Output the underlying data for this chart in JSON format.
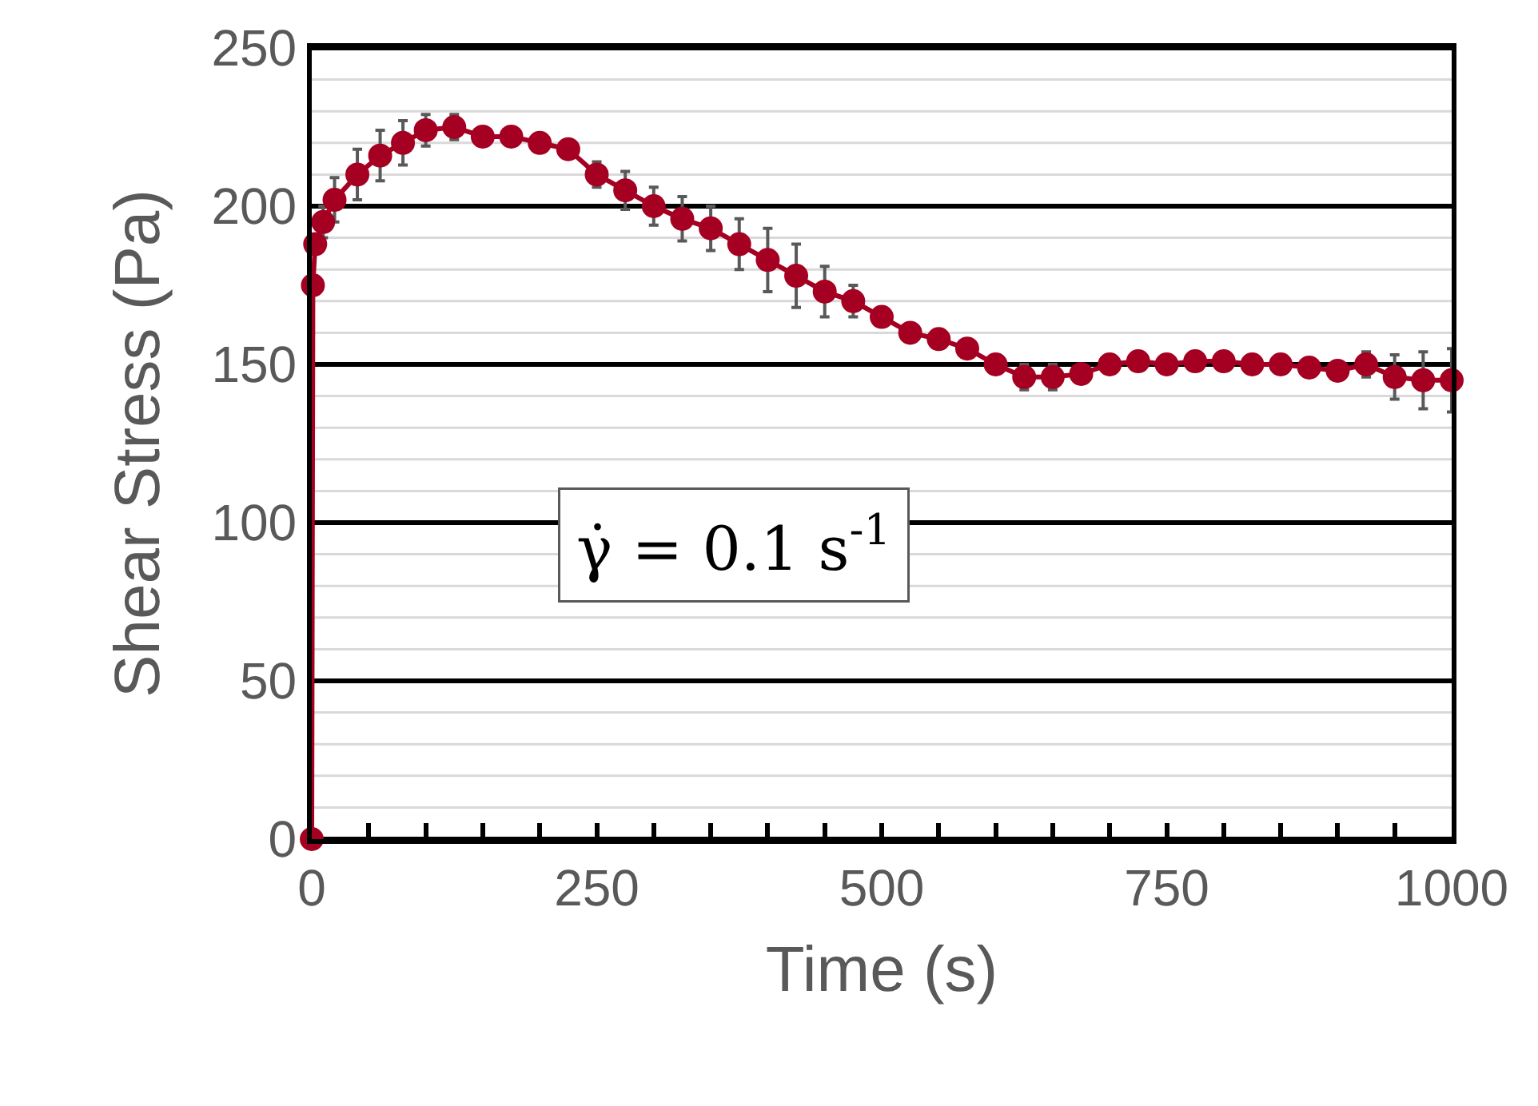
{
  "chart_data": {
    "type": "line",
    "xlabel": "Time (s)",
    "ylabel": "Shear Stress (Pa)",
    "x": [
      0,
      1,
      3,
      10,
      20,
      40,
      60,
      80,
      100,
      125,
      150,
      175,
      200,
      225,
      250,
      275,
      300,
      325,
      350,
      375,
      400,
      425,
      450,
      475,
      500,
      525,
      550,
      575,
      600,
      625,
      650,
      675,
      700,
      725,
      750,
      775,
      800,
      825,
      850,
      875,
      900,
      925,
      950,
      975,
      1000
    ],
    "series": [
      {
        "color": "#a50021",
        "values": [
          0,
          175,
          188,
          195,
          202,
          210,
          216,
          220,
          224,
          225,
          222,
          222,
          220,
          218,
          210,
          205,
          200,
          196,
          193,
          188,
          183,
          178,
          173,
          170,
          165,
          160,
          158,
          155,
          150,
          146,
          146,
          147,
          150,
          151,
          150,
          151,
          151,
          150,
          150,
          149,
          148,
          150,
          146,
          145,
          145
        ],
        "errors": [
          null,
          null,
          null,
          5,
          7,
          8,
          8,
          7,
          5,
          4,
          null,
          null,
          null,
          null,
          4,
          6,
          6,
          7,
          7,
          8,
          10,
          10,
          8,
          5,
          null,
          null,
          null,
          null,
          null,
          4,
          4,
          null,
          null,
          null,
          null,
          null,
          null,
          null,
          null,
          null,
          null,
          4,
          7,
          9,
          10
        ]
      }
    ],
    "marker": "circle",
    "line_style": "solid",
    "grid": "y",
    "xlim": [
      0,
      1000
    ],
    "ylim": [
      0,
      250
    ],
    "xticks": [
      0,
      {
        "value": 50,
        "label": null
      },
      {
        "value": 100,
        "label": null
      },
      {
        "value": 150,
        "label": null
      },
      {
        "value": 200,
        "label": null
      },
      250,
      {
        "value": 300,
        "label": null
      },
      {
        "value": 350,
        "label": null
      },
      {
        "value": 400,
        "label": null
      },
      {
        "value": 450,
        "label": null
      },
      500,
      {
        "value": 550,
        "label": null
      },
      {
        "value": 600,
        "label": null
      },
      {
        "value": 650,
        "label": null
      },
      {
        "value": 700,
        "label": null
      },
      750,
      {
        "value": 800,
        "label": null
      },
      {
        "value": 850,
        "label": null
      },
      {
        "value": 900,
        "label": null
      },
      {
        "value": 950,
        "label": null
      },
      1000
    ],
    "yticks": [
      0,
      {
        "value": 10,
        "label": null
      },
      {
        "value": 20,
        "label": null
      },
      {
        "value": 30,
        "label": null
      },
      {
        "value": 40,
        "label": null
      },
      50,
      {
        "value": 60,
        "label": null
      },
      {
        "value": 70,
        "label": null
      },
      {
        "value": 80,
        "label": null
      },
      {
        "value": 90,
        "label": null
      },
      100,
      {
        "value": 110,
        "label": null
      },
      {
        "value": 120,
        "label": null
      },
      {
        "value": 130,
        "label": null
      },
      {
        "value": 140,
        "label": null
      },
      150,
      {
        "value": 160,
        "label": null
      },
      {
        "value": 170,
        "label": null
      },
      {
        "value": 180,
        "label": null
      },
      {
        "value": 190,
        "label": null
      },
      200,
      {
        "value": 210,
        "label": null
      },
      {
        "value": 220,
        "label": null
      },
      {
        "value": 230,
        "label": null
      },
      {
        "value": 240,
        "label": null
      },
      250
    ],
    "annotations": [
      "γ̇ = 0.1 s$^{-1}$"
    ]
  }
}
